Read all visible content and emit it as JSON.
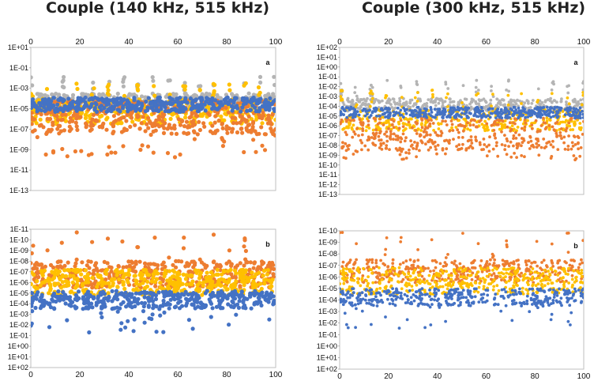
{
  "titles": {
    "left": "Couple (140 kHz, 515 kHz)",
    "right": "Couple (300 kHz, 515 kHz)"
  },
  "colors": {
    "gray": "#b4b4b4",
    "yellow": "#ffc000",
    "orange": "#ed7d31",
    "blue": "#4472c4"
  },
  "chart_data": [
    {
      "type": "scatter",
      "panel": "a",
      "column": "left",
      "x_ticks": [
        "0",
        "20",
        "40",
        "60",
        "80",
        "100"
      ],
      "xlim": [
        0,
        100
      ],
      "y_scale": "log",
      "y_ticks": [
        "1E+01",
        "1E-01",
        "1E-03",
        "1E-05",
        "1E-07",
        "1E-09",
        "1E-11",
        "1E-13"
      ],
      "ylim_exp": [
        1,
        -13
      ],
      "series": [
        {
          "name": "gray",
          "band_exp": [
            -5,
            -3.5
          ],
          "peak_exp": -1.8
        },
        {
          "name": "yellow",
          "band_exp": [
            -6.5,
            -4
          ],
          "peak_exp": -2.5
        },
        {
          "name": "orange",
          "band_exp": [
            -7.5,
            -4.2
          ],
          "low_exp": -9.8
        },
        {
          "name": "blue",
          "band_exp": [
            -5.3,
            -3.9
          ]
        }
      ]
    },
    {
      "type": "scatter",
      "panel": "a",
      "column": "right",
      "x_ticks": [
        "0",
        "20",
        "40",
        "60",
        "80",
        "100"
      ],
      "xlim": [
        0,
        100
      ],
      "y_scale": "log",
      "y_ticks": [
        "1E+02",
        "1E+01",
        "1E+00",
        "1E-01",
        "1E-02",
        "1E-03",
        "1E-04",
        "1E-05",
        "1E-06",
        "1E-07",
        "1E-08",
        "1E-09",
        "1E-10",
        "1E-11",
        "1E-12",
        "1E-13"
      ],
      "ylim_exp": [
        2,
        -13
      ],
      "series": [
        {
          "name": "gray",
          "band_exp": [
            -4.5,
            -3.2
          ],
          "peak_exp": -1.3
        },
        {
          "name": "yellow",
          "band_exp": [
            -6.5,
            -4.3
          ],
          "peak_exp": -2.3
        },
        {
          "name": "orange",
          "band_exp": [
            -8.5,
            -5.2
          ],
          "low_exp": -9.5
        },
        {
          "name": "blue",
          "band_exp": [
            -5.2,
            -4.1
          ]
        }
      ]
    },
    {
      "type": "scatter",
      "panel": "b",
      "column": "left",
      "x_ticks": [
        "0",
        "20",
        "40",
        "60",
        "80",
        "100"
      ],
      "xlim": [
        0,
        100
      ],
      "y_scale": "log_reversed",
      "y_ticks": [
        "1E-11",
        "1E-10",
        "1E-09",
        "1E-08",
        "1E-07",
        "1E-06",
        "1E-05",
        "1E-04",
        "1E-03",
        "1E-02",
        "1E-01",
        "1E+00",
        "1E+01",
        "1E+02"
      ],
      "ylim_exp": [
        -11,
        2
      ],
      "series": [
        {
          "name": "orange",
          "band_exp": [
            -8,
            -5.5
          ],
          "peak_exp": -10.8
        },
        {
          "name": "yellow",
          "band_exp": [
            -7.2,
            -4.8
          ]
        },
        {
          "name": "blue",
          "band_exp": [
            -5.2,
            -3.5
          ],
          "low_exp": -1.2
        }
      ]
    },
    {
      "type": "scatter",
      "panel": "b",
      "column": "right",
      "x_ticks": [
        "0",
        "20",
        "40",
        "60",
        "80",
        "100"
      ],
      "xlim": [
        0,
        100
      ],
      "y_scale": "log_reversed",
      "y_ticks": [
        "1E-10",
        "1E-09",
        "1E-08",
        "1E-07",
        "1E-06",
        "1E-05",
        "1E-04",
        "1E-03",
        "1E-02",
        "1E-01",
        "1E+00",
        "1E+01",
        "1E+02"
      ],
      "ylim_exp": [
        -10,
        2
      ],
      "series": [
        {
          "name": "orange",
          "band_exp": [
            -7.5,
            -5.5
          ],
          "peak_exp": -9.9
        },
        {
          "name": "yellow",
          "band_exp": [
            -6.8,
            -4.5
          ]
        },
        {
          "name": "blue",
          "band_exp": [
            -5,
            -3.5
          ],
          "low_exp": -1.5
        }
      ]
    }
  ]
}
